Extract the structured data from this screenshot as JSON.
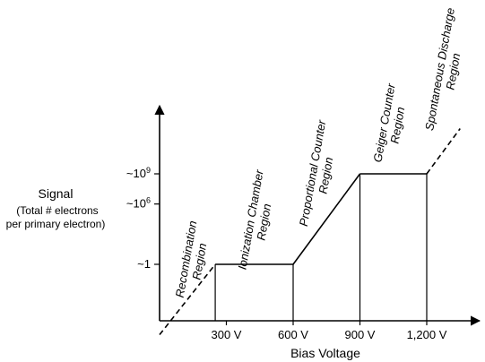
{
  "chart_data": {
    "type": "line",
    "title": "",
    "xlabel": "Bias Voltage",
    "ylabel": "Signal",
    "ylabel_sub": [
      "(Total # electrons",
      "per primary electron)"
    ],
    "x_ticks": [
      {
        "value": 300,
        "label": "300 V"
      },
      {
        "value": 600,
        "label": "600 V"
      },
      {
        "value": 900,
        "label": "900 V"
      },
      {
        "value": 1200,
        "label": "1,200 V"
      }
    ],
    "y_ticks": [
      {
        "value": 0,
        "label": "~1",
        "sup": ""
      },
      {
        "value": 6,
        "label": "~10",
        "sup": "6"
      },
      {
        "value": 9,
        "label": "~10",
        "sup": "9"
      }
    ],
    "xlim": [
      0,
      1400
    ],
    "ylim": [
      -7,
      15
    ],
    "segments": [
      {
        "style": "dashed",
        "x": [
          0,
          250
        ],
        "y": [
          -7,
          0
        ]
      },
      {
        "style": "solid",
        "x": [
          250,
          600
        ],
        "y": [
          0,
          0
        ]
      },
      {
        "style": "solid",
        "x": [
          600,
          900
        ],
        "y": [
          0,
          9
        ]
      },
      {
        "style": "solid",
        "x": [
          900,
          1200
        ],
        "y": [
          9,
          9
        ]
      },
      {
        "style": "dashed",
        "x": [
          1200,
          1350
        ],
        "y": [
          9,
          13.5
        ]
      }
    ],
    "dividers": [
      250,
      600,
      900,
      1200
    ],
    "regions": [
      {
        "lines": [
          "Recombination",
          "Region"
        ]
      },
      {
        "lines": [
          "Ionization Chamber",
          "Region"
        ]
      },
      {
        "lines": [
          "Proportional Counter",
          "Region"
        ]
      },
      {
        "lines": [
          "Geiger Counter",
          "Region"
        ]
      },
      {
        "lines": [
          "Spontaneous Discharge",
          "Region"
        ]
      }
    ]
  }
}
